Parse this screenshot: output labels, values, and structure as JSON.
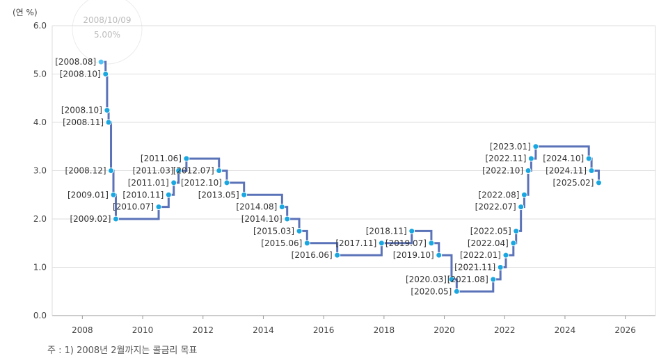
{
  "chart_data": {
    "type": "line",
    "step": true,
    "y_unit_label": "(연 %)",
    "ylim": [
      0,
      6
    ],
    "y_ticks": [
      0,
      1,
      2,
      3,
      4,
      5,
      6
    ],
    "y_tick_labels": [
      "0.0",
      "1.0",
      "2.0",
      "3.0",
      "4.0",
      "5.0",
      "6.0"
    ],
    "xlim": [
      2007.0,
      2027.0
    ],
    "x_ticks": [
      2008,
      2010,
      2012,
      2014,
      2016,
      2018,
      2020,
      2022,
      2024,
      2026
    ],
    "x_tick_labels": [
      "2008",
      "2010",
      "2012",
      "2014",
      "2016",
      "2018",
      "2020",
      "2022",
      "2024",
      "2026"
    ],
    "grid": true,
    "line_color": "#5a72b8",
    "point_color": "#1aa7e0",
    "highlight_color": "#4fc3f7",
    "points": [
      {
        "date": "2008.08",
        "x": 2008.62,
        "y": 5.25,
        "label": "[2008.08]"
      },
      {
        "date": "2008.10",
        "x": 2008.77,
        "y": 5.0,
        "label": "[2008.10]"
      },
      {
        "date": "2008.10",
        "x": 2008.82,
        "y": 4.25,
        "label": "[2008.10]"
      },
      {
        "date": "2008.11",
        "x": 2008.87,
        "y": 4.0,
        "label": "[2008.11]"
      },
      {
        "date": "2008.12",
        "x": 2008.95,
        "y": 3.0,
        "label": "[2008.12]"
      },
      {
        "date": "2009.01",
        "x": 2009.03,
        "y": 2.5,
        "label": "[2009.01]"
      },
      {
        "date": "2009.02",
        "x": 2009.11,
        "y": 2.0,
        "label": "[2009.02]"
      },
      {
        "date": "2010.07",
        "x": 2010.53,
        "y": 2.25,
        "label": "[2010.07]"
      },
      {
        "date": "2010.11",
        "x": 2010.86,
        "y": 2.5,
        "label": "[2010.11]"
      },
      {
        "date": "2011.01",
        "x": 2011.03,
        "y": 2.75,
        "label": "[2011.01]"
      },
      {
        "date": "2011.03",
        "x": 2011.19,
        "y": 3.0,
        "label": "[2011.03]"
      },
      {
        "date": "2011.06",
        "x": 2011.45,
        "y": 3.25,
        "label": "[2011.06]"
      },
      {
        "date": "2012.07",
        "x": 2012.53,
        "y": 3.0,
        "label": "[2012.07]"
      },
      {
        "date": "2012.10",
        "x": 2012.79,
        "y": 2.75,
        "label": "[2012.10]"
      },
      {
        "date": "2013.05",
        "x": 2013.36,
        "y": 2.5,
        "label": "[2013.05]"
      },
      {
        "date": "2014.08",
        "x": 2014.62,
        "y": 2.25,
        "label": "[2014.08]"
      },
      {
        "date": "2014.10",
        "x": 2014.79,
        "y": 2.0,
        "label": "[2014.10]"
      },
      {
        "date": "2015.03",
        "x": 2015.19,
        "y": 1.75,
        "label": "[2015.03]"
      },
      {
        "date": "2015.06",
        "x": 2015.45,
        "y": 1.5,
        "label": "[2015.06]"
      },
      {
        "date": "2016.06",
        "x": 2016.45,
        "y": 1.25,
        "label": "[2016.06]"
      },
      {
        "date": "2017.11",
        "x": 2017.92,
        "y": 1.5,
        "label": "[2017.11]"
      },
      {
        "date": "2018.11",
        "x": 2018.92,
        "y": 1.75,
        "label": "[2018.11]"
      },
      {
        "date": "2019.07",
        "x": 2019.57,
        "y": 1.5,
        "label": "[2019.07]"
      },
      {
        "date": "2019.10",
        "x": 2019.82,
        "y": 1.25,
        "label": "[2019.10]"
      },
      {
        "date": "2020.03",
        "x": 2020.24,
        "y": 0.75,
        "label": "[2020.03]"
      },
      {
        "date": "2020.05",
        "x": 2020.41,
        "y": 0.5,
        "label": "[2020.05]"
      },
      {
        "date": "2021.08",
        "x": 2021.62,
        "y": 0.75,
        "label": "[2021.08]"
      },
      {
        "date": "2021.11",
        "x": 2021.86,
        "y": 1.0,
        "label": "[2021.11]"
      },
      {
        "date": "2022.01",
        "x": 2022.04,
        "y": 1.25,
        "label": "[2022.01]"
      },
      {
        "date": "2022.04",
        "x": 2022.29,
        "y": 1.5,
        "label": "[2022.04]"
      },
      {
        "date": "2022.05",
        "x": 2022.38,
        "y": 1.75,
        "label": "[2022.05]"
      },
      {
        "date": "2022.07",
        "x": 2022.54,
        "y": 2.25,
        "label": "[2022.07]"
      },
      {
        "date": "2022.08",
        "x": 2022.65,
        "y": 2.5,
        "label": "[2022.08]"
      },
      {
        "date": "2022.10",
        "x": 2022.78,
        "y": 3.0,
        "label": "[2022.10]"
      },
      {
        "date": "2022.11",
        "x": 2022.88,
        "y": 3.25,
        "label": "[2022.11]"
      },
      {
        "date": "2023.01",
        "x": 2023.03,
        "y": 3.5,
        "label": "[2023.01]"
      },
      {
        "date": "2024.10",
        "x": 2024.79,
        "y": 3.25,
        "label": "[2024.10]"
      },
      {
        "date": "2024.11",
        "x": 2024.88,
        "y": 3.0,
        "label": "[2024.11]"
      },
      {
        "date": "2025.02",
        "x": 2025.12,
        "y": 2.75,
        "label": "[2025.02]"
      }
    ],
    "tooltip": {
      "date": "2008/10/09",
      "value": "5.00%"
    },
    "footnote": "주 : 1) 2008년 2월까지는 콜금리 목표"
  }
}
